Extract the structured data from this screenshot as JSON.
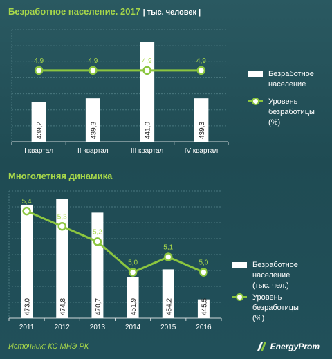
{
  "header": {
    "title": "Безработное население. 2017",
    "unit": "| тыс. человек |"
  },
  "section2": {
    "title": "Многолетняя динамика"
  },
  "legend1": {
    "bar_label_1": "Безработное",
    "bar_label_2": "население",
    "line_label_1": "Уровень",
    "line_label_2": "безработицы (%)"
  },
  "legend2": {
    "bar_label_1": "Безработное",
    "bar_label_2": "население (тыс. чел.)",
    "line_label_1": "Уровень",
    "line_label_2": "безработицы (%)"
  },
  "footer": {
    "source": "Источник: КС МНЭ РК",
    "logo": "EnergyProm"
  },
  "colors": {
    "bar": "#ffffff",
    "line": "#8cc63f",
    "value_label": "#a8d84a",
    "axis_text": "#ffffff"
  },
  "chart_data": [
    {
      "type": "bar+line",
      "categories": [
        "I квартал",
        "II квартал",
        "III квартал",
        "IV квартал"
      ],
      "series": [
        {
          "name": "Безработное население",
          "kind": "bar",
          "values": [
            439.2,
            439.3,
            441.0,
            439.3
          ],
          "labels": [
            "439,2",
            "439,3",
            "441,0",
            "439,3"
          ]
        },
        {
          "name": "Уровень безработицы (%)",
          "kind": "line",
          "values": [
            4.9,
            4.9,
            4.9,
            4.9
          ],
          "labels": [
            "4,9",
            "4,9",
            "4,9",
            "4,9"
          ]
        }
      ],
      "bar_ylim": [
        438.0,
        441.0
      ],
      "line_ylim": [
        4.0,
        5.3
      ],
      "grid": true,
      "legend": "right"
    },
    {
      "type": "bar+line",
      "categories": [
        "2011",
        "2012",
        "2013",
        "2014",
        "2015",
        "2016"
      ],
      "series": [
        {
          "name": "Безработное население (тыс. чел.)",
          "kind": "bar",
          "values": [
            473.0,
            474.8,
            470.7,
            451.9,
            454.2,
            445.5
          ],
          "labels": [
            "473,0",
            "474,8",
            "470,7",
            "451,9",
            "454,2",
            "445,5"
          ]
        },
        {
          "name": "Уровень безработицы (%)",
          "kind": "line",
          "values": [
            5.4,
            5.3,
            5.2,
            5.0,
            5.1,
            5.0
          ],
          "labels": [
            "5,4",
            "5,3",
            "5,2",
            "5,0",
            "5,1",
            "5,0"
          ]
        }
      ],
      "bar_ylim": [
        440.0,
        475.0
      ],
      "line_ylim": [
        4.7,
        5.5
      ],
      "grid": true,
      "legend": "right"
    }
  ]
}
